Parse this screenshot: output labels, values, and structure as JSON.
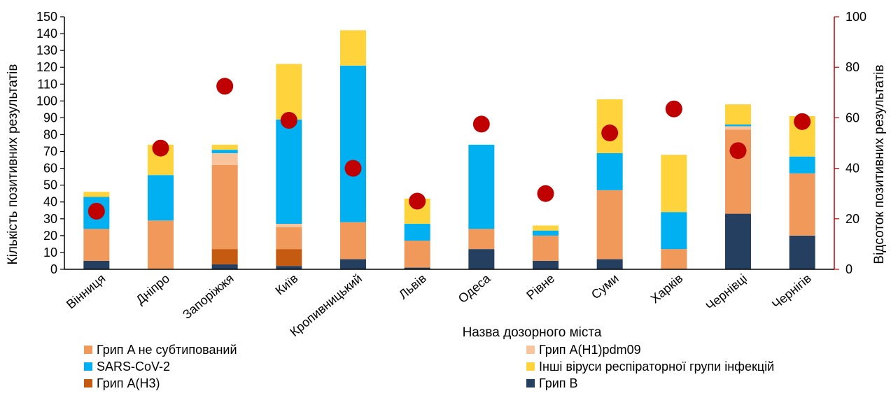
{
  "chart_data": {
    "type": "bar",
    "stacked": true,
    "categories": [
      "Вінниця",
      "Дніпро",
      "Запоріжжя",
      "Київ",
      "Кропивницький",
      "Львів",
      "Одеса",
      "Рівне",
      "Суми",
      "Харків",
      "Чернівці",
      "Чернігів"
    ],
    "xlabel": "Назва дозорного міста",
    "ylabel": "Кількість позитивних результатів",
    "y2label": "Відсоток позитивних результатів",
    "ylim": [
      0,
      150
    ],
    "y2lim": [
      0,
      100
    ],
    "yticks": [
      0,
      10,
      20,
      30,
      40,
      50,
      60,
      70,
      80,
      90,
      100,
      110,
      120,
      130,
      140,
      150
    ],
    "y2ticks": [
      0,
      20,
      40,
      60,
      80,
      100
    ],
    "series": [
      {
        "name": "Грип В",
        "color": "#243F60",
        "values": [
          5,
          0,
          3,
          2,
          6,
          1,
          12,
          5,
          6,
          0,
          33,
          20
        ]
      },
      {
        "name": "Грип A(H3)",
        "color": "#C55A11",
        "values": [
          0,
          0,
          9,
          10,
          0,
          0,
          0,
          0,
          0,
          0,
          0,
          0
        ]
      },
      {
        "name": "Грип A не субтипований",
        "color": "#F0995B",
        "values": [
          19,
          29,
          50,
          13,
          22,
          16,
          12,
          15,
          41,
          12,
          50,
          37
        ]
      },
      {
        "name": "Грип A(H1)pdm09",
        "color": "#F8C49C",
        "values": [
          0,
          0,
          7,
          2,
          0,
          0,
          0,
          0,
          0,
          0,
          2,
          0
        ]
      },
      {
        "name": "SARS-CoV-2",
        "color": "#00B0F0",
        "values": [
          19,
          27,
          2,
          62,
          93,
          10,
          50,
          3,
          22,
          22,
          1,
          10
        ]
      },
      {
        "name": "Інші віруси респіраторної групи інфекцій",
        "color": "#FFD33C",
        "values": [
          3,
          18,
          3,
          33,
          21,
          15,
          0,
          3,
          32,
          34,
          12,
          24
        ]
      }
    ],
    "percent_series": {
      "color": "#C00000",
      "values": [
        23,
        48,
        72.5,
        59,
        40,
        27,
        57.5,
        30,
        54,
        63.5,
        47,
        58.5
      ]
    },
    "legend": [
      {
        "label": "Грип A не субтипований",
        "color": "#F0995B"
      },
      {
        "label": "Грип A(H1)pdm09",
        "color": "#F8C49C"
      },
      {
        "label": "SARS-CoV-2",
        "color": "#00B0F0"
      },
      {
        "label": "Інші віруси респіраторної групи інфекцій",
        "color": "#FFD33C"
      },
      {
        "label": "Грип A(H3)",
        "color": "#C55A11"
      },
      {
        "label": "Грип В",
        "color": "#243F60"
      }
    ],
    "legend_placement": "bottom",
    "grid": false
  }
}
